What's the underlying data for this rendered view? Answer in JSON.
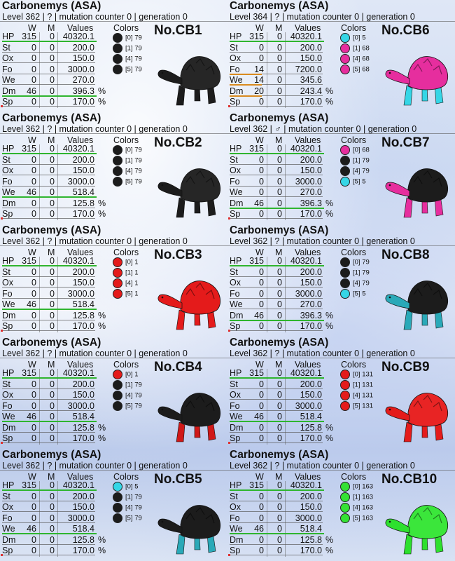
{
  "headers": {
    "w": "W",
    "m": "M",
    "values": "Values",
    "colors": "Colors"
  },
  "cards": [
    {
      "title": "Carbonemys (ASA)",
      "subtitle": "Level 362 | ? | mutation counter 0 | generation 0",
      "label": "No.CB1",
      "stats": [
        {
          "name": "HP",
          "w": "315",
          "m": "0",
          "value": "40320.1",
          "pct": ""
        },
        {
          "name": "St",
          "w": "0",
          "m": "0",
          "value": "200.0",
          "pct": ""
        },
        {
          "name": "Ox",
          "w": "0",
          "m": "0",
          "value": "150.0",
          "pct": ""
        },
        {
          "name": "Fo",
          "w": "0",
          "m": "0",
          "value": "3000.0",
          "pct": ""
        },
        {
          "name": "We",
          "w": "0",
          "m": "0",
          "value": "270.0",
          "pct": ""
        },
        {
          "name": "Dm",
          "w": "46",
          "m": "0",
          "value": "396.3",
          "pct": "%"
        },
        {
          "name": "Sp",
          "w": "0",
          "m": "0",
          "value": "170.0",
          "pct": "%"
        }
      ],
      "highlights": {
        "HP": "#2fb52f",
        "Dm": "#2fb52f"
      },
      "colors": [
        {
          "label": "[0] 79",
          "hex": "#1c1c1c"
        },
        {
          "label": "[1] 79",
          "hex": "#1c1c1c"
        },
        {
          "label": "[4] 79",
          "hex": "#1c1c1c"
        },
        {
          "label": "[5] 79",
          "hex": "#1c1c1c"
        }
      ],
      "body_color": "#1c1c1c",
      "shell_color": "#262626",
      "head_color": "#1c1c1c"
    },
    {
      "title": "Carbonemys (ASA)",
      "subtitle": "Level 364 | ? | mutation counter 0 | generation 0",
      "label": "No.CB6",
      "stats": [
        {
          "name": "HP",
          "w": "315",
          "m": "0",
          "value": "40320.1",
          "pct": ""
        },
        {
          "name": "St",
          "w": "0",
          "m": "0",
          "value": "200.0",
          "pct": ""
        },
        {
          "name": "Ox",
          "w": "0",
          "m": "0",
          "value": "150.0",
          "pct": ""
        },
        {
          "name": "Fo",
          "w": "14",
          "m": "0",
          "value": "7200.0",
          "pct": ""
        },
        {
          "name": "We",
          "w": "14",
          "m": "0",
          "value": "345.6",
          "pct": ""
        },
        {
          "name": "Dm",
          "w": "20",
          "m": "0",
          "value": "243.4",
          "pct": "%"
        },
        {
          "name": "Sp",
          "w": "0",
          "m": "0",
          "value": "170.0",
          "pct": "%"
        }
      ],
      "highlights": {
        "HP": "#2fb52f",
        "Fo": "#d98a1e",
        "We": "#d98a1e",
        "Dm": "#d98a1e"
      },
      "colors": [
        {
          "label": "[0] 5",
          "hex": "#35d6e6"
        },
        {
          "label": "[1] 68",
          "hex": "#e62e9e"
        },
        {
          "label": "[4] 68",
          "hex": "#e62e9e"
        },
        {
          "label": "[5] 68",
          "hex": "#e62e9e"
        }
      ],
      "body_color": "#35d6e6",
      "shell_color": "#e62e9e",
      "head_color": "#e62e9e"
    },
    {
      "title": "Carbonemys (ASA)",
      "subtitle": "Level 362 | ? | mutation counter 0 | generation 0",
      "label": "No.CB2",
      "stats": [
        {
          "name": "HP",
          "w": "315",
          "m": "0",
          "value": "40320.1",
          "pct": ""
        },
        {
          "name": "St",
          "w": "0",
          "m": "0",
          "value": "200.0",
          "pct": ""
        },
        {
          "name": "Ox",
          "w": "0",
          "m": "0",
          "value": "150.0",
          "pct": ""
        },
        {
          "name": "Fo",
          "w": "0",
          "m": "0",
          "value": "3000.0",
          "pct": ""
        },
        {
          "name": "We",
          "w": "46",
          "m": "0",
          "value": "518.4",
          "pct": ""
        },
        {
          "name": "Dm",
          "w": "0",
          "m": "0",
          "value": "125.8",
          "pct": "%"
        },
        {
          "name": "Sp",
          "w": "0",
          "m": "0",
          "value": "170.0",
          "pct": "%"
        }
      ],
      "highlights": {
        "HP": "#2fb52f",
        "We": "#2fb52f"
      },
      "colors": [
        {
          "label": "[0] 79",
          "hex": "#1c1c1c"
        },
        {
          "label": "[1] 79",
          "hex": "#1c1c1c"
        },
        {
          "label": "[4] 79",
          "hex": "#1c1c1c"
        },
        {
          "label": "[5] 79",
          "hex": "#1c1c1c"
        }
      ],
      "body_color": "#1c1c1c",
      "shell_color": "#262626",
      "head_color": "#1c1c1c"
    },
    {
      "title": "Carbonemys (ASA)",
      "subtitle": "Level 362 | ♂ | mutation counter 0 | generation 0",
      "label": "No.CB7",
      "stats": [
        {
          "name": "HP",
          "w": "315",
          "m": "0",
          "value": "40320.1",
          "pct": ""
        },
        {
          "name": "St",
          "w": "0",
          "m": "0",
          "value": "200.0",
          "pct": ""
        },
        {
          "name": "Ox",
          "w": "0",
          "m": "0",
          "value": "150.0",
          "pct": ""
        },
        {
          "name": "Fo",
          "w": "0",
          "m": "0",
          "value": "3000.0",
          "pct": ""
        },
        {
          "name": "We",
          "w": "0",
          "m": "0",
          "value": "270.0",
          "pct": ""
        },
        {
          "name": "Dm",
          "w": "46",
          "m": "0",
          "value": "396.3",
          "pct": "%"
        },
        {
          "name": "Sp",
          "w": "0",
          "m": "0",
          "value": "170.0",
          "pct": "%"
        }
      ],
      "highlights": {
        "HP": "#2fb52f",
        "Dm": "#2fb52f"
      },
      "colors": [
        {
          "label": "[0] 68",
          "hex": "#e62e9e"
        },
        {
          "label": "[1] 79",
          "hex": "#1c1c1c"
        },
        {
          "label": "[4] 79",
          "hex": "#1c1c1c"
        },
        {
          "label": "[5] 5",
          "hex": "#35d6e6"
        }
      ],
      "body_color": "#e62e9e",
      "shell_color": "#1c1c1c",
      "head_color": "#e62e9e"
    },
    {
      "title": "Carbonemys (ASA)",
      "subtitle": "Level 362 | ? | mutation counter 0 | generation 0",
      "label": "No.CB3",
      "stats": [
        {
          "name": "HP",
          "w": "315",
          "m": "0",
          "value": "40320.1",
          "pct": ""
        },
        {
          "name": "St",
          "w": "0",
          "m": "0",
          "value": "200.0",
          "pct": ""
        },
        {
          "name": "Ox",
          "w": "0",
          "m": "0",
          "value": "150.0",
          "pct": ""
        },
        {
          "name": "Fo",
          "w": "0",
          "m": "0",
          "value": "3000.0",
          "pct": ""
        },
        {
          "name": "We",
          "w": "46",
          "m": "0",
          "value": "518.4",
          "pct": ""
        },
        {
          "name": "Dm",
          "w": "0",
          "m": "0",
          "value": "125.8",
          "pct": "%"
        },
        {
          "name": "Sp",
          "w": "0",
          "m": "0",
          "value": "170.0",
          "pct": "%"
        }
      ],
      "highlights": {
        "HP": "#2fb52f",
        "We": "#2fb52f"
      },
      "colors": [
        {
          "label": "[0] 1",
          "hex": "#e41b1b"
        },
        {
          "label": "[1] 1",
          "hex": "#e41b1b"
        },
        {
          "label": "[4] 1",
          "hex": "#e41b1b"
        },
        {
          "label": "[5] 1",
          "hex": "#e41b1b"
        }
      ],
      "body_color": "#e41b1b",
      "shell_color": "#e41b1b",
      "head_color": "#e41b1b"
    },
    {
      "title": "Carbonemys (ASA)",
      "subtitle": "Level 362 | ? | mutation counter 0 | generation 0",
      "label": "No.CB8",
      "stats": [
        {
          "name": "HP",
          "w": "315",
          "m": "0",
          "value": "40320.1",
          "pct": ""
        },
        {
          "name": "St",
          "w": "0",
          "m": "0",
          "value": "200.0",
          "pct": ""
        },
        {
          "name": "Ox",
          "w": "0",
          "m": "0",
          "value": "150.0",
          "pct": ""
        },
        {
          "name": "Fo",
          "w": "0",
          "m": "0",
          "value": "3000.0",
          "pct": ""
        },
        {
          "name": "We",
          "w": "0",
          "m": "0",
          "value": "270.0",
          "pct": ""
        },
        {
          "name": "Dm",
          "w": "46",
          "m": "0",
          "value": "396.3",
          "pct": "%"
        },
        {
          "name": "Sp",
          "w": "0",
          "m": "0",
          "value": "170.0",
          "pct": "%"
        }
      ],
      "highlights": {
        "HP": "#2fb52f",
        "Dm": "#2fb52f"
      },
      "colors": [
        {
          "label": "[0] 79",
          "hex": "#1c1c1c"
        },
        {
          "label": "[1] 79",
          "hex": "#1c1c1c"
        },
        {
          "label": "[4] 79",
          "hex": "#1c1c1c"
        },
        {
          "label": "[5] 5",
          "hex": "#35d6e6"
        }
      ],
      "body_color": "#2aa9b8",
      "shell_color": "#1c1c1c",
      "head_color": "#2aa9b8"
    },
    {
      "title": "Carbonemys (ASA)",
      "subtitle": "Level 362 | ? | mutation counter 0 | generation 0",
      "label": "No.CB4",
      "stats": [
        {
          "name": "HP",
          "w": "315",
          "m": "0",
          "value": "40320.1",
          "pct": ""
        },
        {
          "name": "St",
          "w": "0",
          "m": "0",
          "value": "200.0",
          "pct": ""
        },
        {
          "name": "Ox",
          "w": "0",
          "m": "0",
          "value": "150.0",
          "pct": ""
        },
        {
          "name": "Fo",
          "w": "0",
          "m": "0",
          "value": "3000.0",
          "pct": ""
        },
        {
          "name": "We",
          "w": "46",
          "m": "0",
          "value": "518.4",
          "pct": ""
        },
        {
          "name": "Dm",
          "w": "0",
          "m": "0",
          "value": "125.8",
          "pct": "%"
        },
        {
          "name": "Sp",
          "w": "0",
          "m": "0",
          "value": "170.0",
          "pct": "%"
        }
      ],
      "highlights": {
        "HP": "#2fb52f",
        "We": "#2fb52f"
      },
      "colors": [
        {
          "label": "[0] 1",
          "hex": "#e41b1b"
        },
        {
          "label": "[1] 79",
          "hex": "#1c1c1c"
        },
        {
          "label": "[4] 79",
          "hex": "#1c1c1c"
        },
        {
          "label": "[5] 79",
          "hex": "#1c1c1c"
        }
      ],
      "body_color": "#d01818",
      "shell_color": "#1c1c1c",
      "head_color": "#1c1c1c"
    },
    {
      "title": "Carbonemys (ASA)",
      "subtitle": "Level 362 | ? | mutation counter 0 | generation 0",
      "label": "No.CB9",
      "stats": [
        {
          "name": "HP",
          "w": "315",
          "m": "0",
          "value": "40320.1",
          "pct": ""
        },
        {
          "name": "St",
          "w": "0",
          "m": "0",
          "value": "200.0",
          "pct": ""
        },
        {
          "name": "Ox",
          "w": "0",
          "m": "0",
          "value": "150.0",
          "pct": ""
        },
        {
          "name": "Fo",
          "w": "0",
          "m": "0",
          "value": "3000.0",
          "pct": ""
        },
        {
          "name": "We",
          "w": "46",
          "m": "0",
          "value": "518.4",
          "pct": ""
        },
        {
          "name": "Dm",
          "w": "0",
          "m": "0",
          "value": "125.8",
          "pct": "%"
        },
        {
          "name": "Sp",
          "w": "0",
          "m": "0",
          "value": "170.0",
          "pct": "%"
        }
      ],
      "highlights": {
        "HP": "#2fb52f",
        "We": "#2fb52f"
      },
      "colors": [
        {
          "label": "[0] 131",
          "hex": "#e41b1b"
        },
        {
          "label": "[1] 131",
          "hex": "#e41b1b"
        },
        {
          "label": "[4] 131",
          "hex": "#e41b1b"
        },
        {
          "label": "[5] 131",
          "hex": "#e41b1b"
        }
      ],
      "body_color": "#e41b1b",
      "shell_color": "#e82424",
      "head_color": "#e41b1b"
    },
    {
      "title": "Carbonemys (ASA)",
      "subtitle": "Level 362 | ? | mutation counter 0 | generation 0",
      "label": "No.CB5",
      "stats": [
        {
          "name": "HP",
          "w": "315",
          "m": "0",
          "value": "40320.1",
          "pct": ""
        },
        {
          "name": "St",
          "w": "0",
          "m": "0",
          "value": "200.0",
          "pct": ""
        },
        {
          "name": "Ox",
          "w": "0",
          "m": "0",
          "value": "150.0",
          "pct": ""
        },
        {
          "name": "Fo",
          "w": "0",
          "m": "0",
          "value": "3000.0",
          "pct": ""
        },
        {
          "name": "We",
          "w": "46",
          "m": "0",
          "value": "518.4",
          "pct": ""
        },
        {
          "name": "Dm",
          "w": "0",
          "m": "0",
          "value": "125.8",
          "pct": "%"
        },
        {
          "name": "Sp",
          "w": "0",
          "m": "0",
          "value": "170.0",
          "pct": "%"
        }
      ],
      "highlights": {
        "HP": "#2fb52f",
        "We": "#2fb52f"
      },
      "colors": [
        {
          "label": "[0] 5",
          "hex": "#35d6e6"
        },
        {
          "label": "[1] 79",
          "hex": "#1c1c1c"
        },
        {
          "label": "[4] 79",
          "hex": "#1c1c1c"
        },
        {
          "label": "[5] 79",
          "hex": "#1c1c1c"
        }
      ],
      "body_color": "#2aa9b8",
      "shell_color": "#1c1c1c",
      "head_color": "#1c1c1c"
    },
    {
      "title": "Carbonemys (ASA)",
      "subtitle": "Level 362 | ? | mutation counter 0 | generation 0",
      "label": "No.CB10",
      "stats": [
        {
          "name": "HP",
          "w": "315",
          "m": "0",
          "value": "40320.1",
          "pct": ""
        },
        {
          "name": "St",
          "w": "0",
          "m": "0",
          "value": "200.0",
          "pct": ""
        },
        {
          "name": "Ox",
          "w": "0",
          "m": "0",
          "value": "150.0",
          "pct": ""
        },
        {
          "name": "Fo",
          "w": "0",
          "m": "0",
          "value": "3000.0",
          "pct": ""
        },
        {
          "name": "We",
          "w": "46",
          "m": "0",
          "value": "518.4",
          "pct": ""
        },
        {
          "name": "Dm",
          "w": "0",
          "m": "0",
          "value": "125.8",
          "pct": "%"
        },
        {
          "name": "Sp",
          "w": "0",
          "m": "0",
          "value": "170.0",
          "pct": "%"
        }
      ],
      "highlights": {
        "HP": "#2fb52f",
        "We": "#2fb52f"
      },
      "colors": [
        {
          "label": "[0] 163",
          "hex": "#35e235"
        },
        {
          "label": "[1] 163",
          "hex": "#35e235"
        },
        {
          "label": "[4] 163",
          "hex": "#35e235"
        },
        {
          "label": "[5] 163",
          "hex": "#35e235"
        }
      ],
      "body_color": "#2ee02e",
      "shell_color": "#3be63b",
      "head_color": "#2ee02e"
    }
  ]
}
